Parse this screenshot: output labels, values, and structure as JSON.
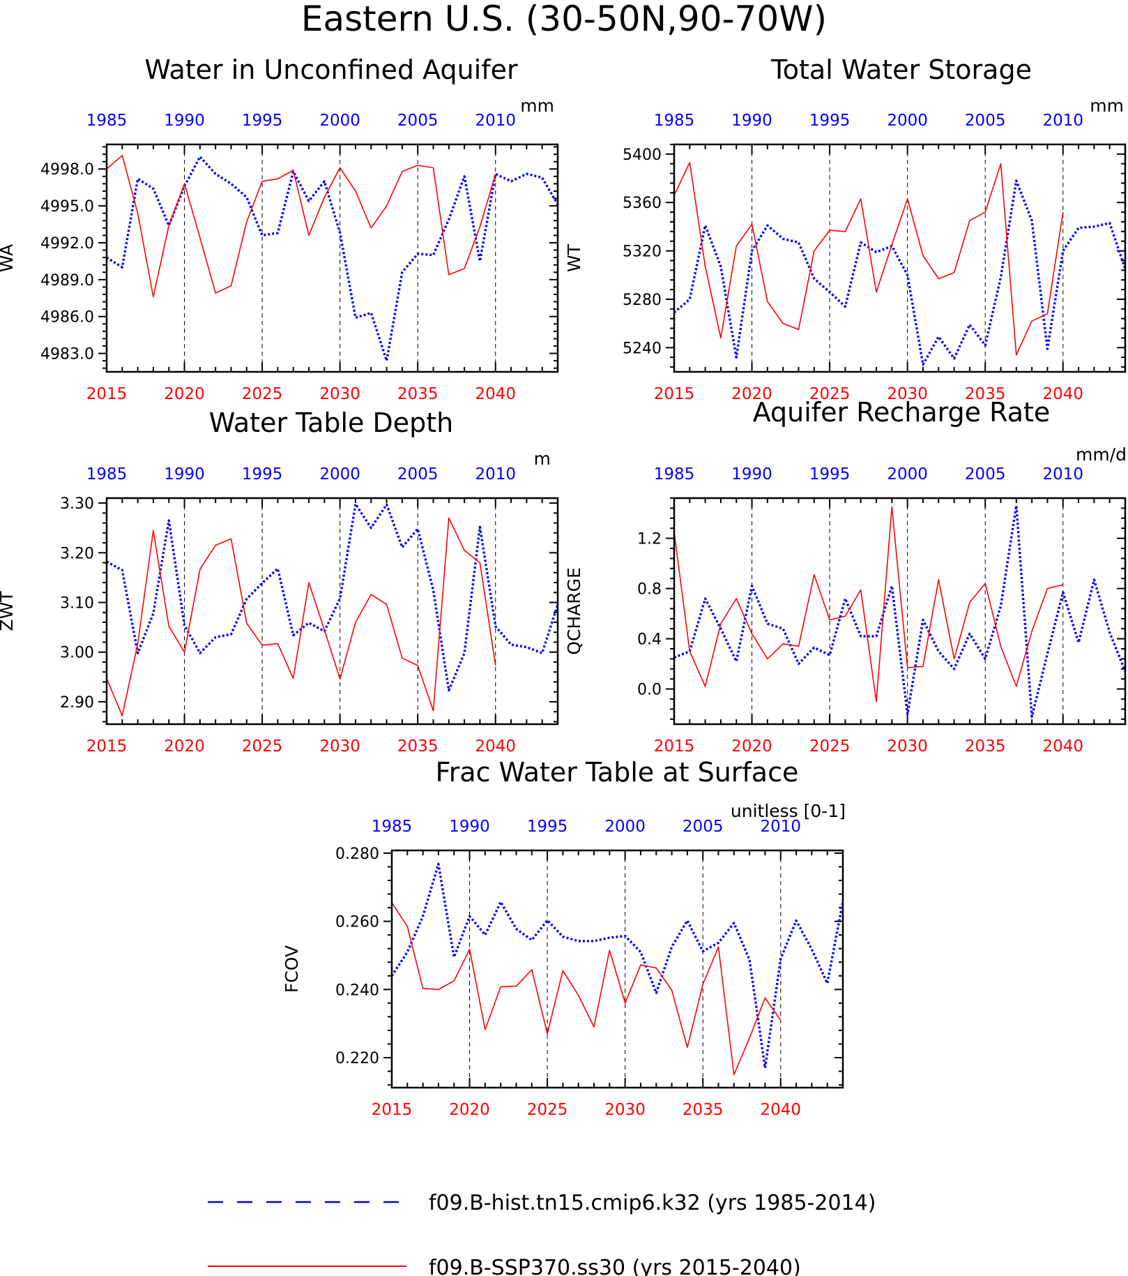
{
  "page_title": "Eastern U.S. (30-50N,90-70W)",
  "colors": {
    "hist": "#0000ff",
    "ssp": "#ff0000",
    "axis": "#000000"
  },
  "legend": {
    "hist_label": "f09.B-hist.tn15.cmip6.k32 (yrs 1985-2014)",
    "ssp_label": "f09.B-SSP370.ss30 (yrs 2015-2040)"
  },
  "chart_data": [
    {
      "type": "line",
      "title": "Water in Unconfined Aquifer",
      "ylabel": "WA",
      "units": "mm",
      "ylim": [
        4981.5,
        5000.0
      ],
      "yticks": [
        4983.0,
        4986.0,
        4989.0,
        4992.0,
        4995.0,
        4998.0
      ],
      "ytick_labels": [
        "4983.0",
        "4986.0",
        "4989.0",
        "4992.0",
        "4995.0",
        "4998.0"
      ],
      "x_bottom_ticks": [
        "2015",
        "2020",
        "2025",
        "2030",
        "2035",
        "2040"
      ],
      "x_top_ticks": [
        "1985",
        "1990",
        "1995",
        "2000",
        "2005",
        "2010"
      ],
      "series": [
        {
          "name": "f09.B-hist.tn15.cmip6.k32 (yrs 1985-2014)",
          "x_start": 1985,
          "values": [
            4990.8,
            4990.0,
            4997.2,
            4996.4,
            4993.4,
            4996.6,
            4999.0,
            4997.6,
            4996.8,
            4995.7,
            4992.6,
            4992.8,
            4997.8,
            4995.4,
            4997.0,
            4992.8,
            4985.9,
            4986.3,
            4982.4,
            4989.6,
            4991.1,
            4991.0,
            4993.9,
            4997.4,
            4990.5,
            4997.6,
            4997.0,
            4997.6,
            4997.3,
            4995.1
          ]
        },
        {
          "name": "f09.B-SSP370.ss30 (yrs 2015-2040)",
          "x_start": 2015,
          "values": [
            4998.0,
            4999.1,
            4994.4,
            4987.6,
            4993.4,
            4996.8,
            4992.4,
            4987.9,
            4988.5,
            4993.7,
            4997.0,
            4997.2,
            4997.9,
            4992.6,
            4995.7,
            4998.1,
            4996.2,
            4993.2,
            4995.0,
            4997.8,
            4998.3,
            4998.1,
            4989.4,
            4989.9,
            4993.3,
            4997.6
          ]
        }
      ]
    },
    {
      "type": "line",
      "title": "Total Water Storage",
      "ylabel": "WT",
      "units": "mm",
      "ylim": [
        5220,
        5408
      ],
      "yticks": [
        5240,
        5280,
        5320,
        5360,
        5400
      ],
      "ytick_labels": [
        "5240",
        "5280",
        "5320",
        "5360",
        "5400"
      ],
      "x_bottom_ticks": [
        "2015",
        "2020",
        "2025",
        "2030",
        "2035",
        "2040"
      ],
      "x_top_ticks": [
        "1985",
        "1990",
        "1995",
        "2000",
        "2005",
        "2010"
      ],
      "series": [
        {
          "name": "f09.B-hist.tn15.cmip6.k32 (yrs 1985-2014)",
          "x_start": 1985,
          "values": [
            5269,
            5280,
            5341,
            5307,
            5232,
            5320,
            5341,
            5330,
            5327,
            5297,
            5286,
            5274,
            5327,
            5319,
            5324,
            5300,
            5226,
            5249,
            5231,
            5259,
            5242,
            5298,
            5378,
            5345,
            5239,
            5320,
            5339,
            5340,
            5343,
            5305
          ]
        },
        {
          "name": "f09.B-SSP370.ss30 (yrs 2015-2040)",
          "x_start": 2015,
          "values": [
            5366,
            5393,
            5307,
            5248,
            5324,
            5342,
            5278,
            5260,
            5255,
            5320,
            5337,
            5336,
            5363,
            5286,
            5325,
            5363,
            5316,
            5297,
            5302,
            5345,
            5352,
            5392,
            5234,
            5262,
            5268,
            5352
          ]
        }
      ]
    },
    {
      "type": "line",
      "title": "Water Table Depth",
      "ylabel": "ZWT",
      "units": "m",
      "ylim": [
        2.855,
        3.31
      ],
      "yticks": [
        2.9,
        3.0,
        3.1,
        3.2,
        3.3
      ],
      "ytick_labels": [
        "2.90",
        "3.00",
        "3.10",
        "3.20",
        "3.30"
      ],
      "x_bottom_ticks": [
        "2015",
        "2020",
        "2025",
        "2030",
        "2035",
        "2040"
      ],
      "x_top_ticks": [
        "1985",
        "1990",
        "1995",
        "2000",
        "2005",
        "2010"
      ],
      "series": [
        {
          "name": "f09.B-hist.tn15.cmip6.k32 (yrs 1985-2014)",
          "x_start": 1985,
          "values": [
            3.182,
            3.165,
            2.998,
            3.078,
            3.265,
            3.054,
            2.998,
            3.03,
            3.036,
            3.107,
            3.139,
            3.168,
            3.034,
            3.059,
            3.042,
            3.108,
            3.298,
            3.25,
            3.297,
            3.211,
            3.248,
            3.125,
            2.923,
            2.998,
            3.252,
            3.052,
            3.015,
            3.01,
            2.998,
            3.096
          ]
        },
        {
          "name": "f09.B-SSP370.ss30 (yrs 2015-2040)",
          "x_start": 2015,
          "values": [
            2.947,
            2.872,
            3.017,
            3.245,
            3.052,
            3.0,
            3.167,
            3.215,
            3.228,
            3.058,
            3.014,
            3.017,
            2.947,
            3.14,
            3.045,
            2.946,
            3.06,
            3.116,
            3.096,
            2.988,
            2.973,
            2.882,
            3.27,
            3.205,
            3.18,
            2.973
          ]
        }
      ]
    },
    {
      "type": "line",
      "title": "Aquifer Recharge Rate",
      "ylabel": "QCHARGE",
      "units": "mm/d",
      "ylim": [
        -0.28,
        1.52
      ],
      "yticks": [
        0.0,
        0.4,
        0.8,
        1.2
      ],
      "ytick_labels": [
        "0.0",
        "0.4",
        "0.8",
        "1.2"
      ],
      "x_bottom_ticks": [
        "2015",
        "2020",
        "2025",
        "2030",
        "2035",
        "2040"
      ],
      "x_top_ticks": [
        "1985",
        "1990",
        "1995",
        "2000",
        "2005",
        "2010"
      ],
      "series": [
        {
          "name": "f09.B-hist.tn15.cmip6.k32 (yrs 1985-2014)",
          "x_start": 1985,
          "values": [
            0.25,
            0.3,
            0.72,
            0.48,
            0.22,
            0.82,
            0.52,
            0.48,
            0.2,
            0.33,
            0.27,
            0.72,
            0.42,
            0.42,
            0.82,
            -0.2,
            0.55,
            0.3,
            0.16,
            0.44,
            0.24,
            0.66,
            1.46,
            -0.22,
            0.28,
            0.77,
            0.37,
            0.87,
            0.45,
            0.14
          ]
        },
        {
          "name": "f09.B-SSP370.ss30 (yrs 2015-2040)",
          "x_start": 2015,
          "values": [
            1.25,
            0.3,
            0.02,
            0.52,
            0.72,
            0.44,
            0.24,
            0.36,
            0.34,
            0.91,
            0.55,
            0.58,
            0.79,
            -0.1,
            1.45,
            0.17,
            0.18,
            0.87,
            0.24,
            0.69,
            0.84,
            0.34,
            0.02,
            0.46,
            0.8,
            0.83
          ]
        }
      ]
    },
    {
      "type": "line",
      "title": "Frac Water Table at Surface",
      "ylabel": "FCOV",
      "units": "unitless [0-1]",
      "ylim": [
        0.2112,
        0.2808
      ],
      "yticks": [
        0.22,
        0.24,
        0.26,
        0.28
      ],
      "ytick_labels": [
        "0.220",
        "0.240",
        "0.260",
        "0.280"
      ],
      "x_bottom_ticks": [
        "2015",
        "2020",
        "2025",
        "2030",
        "2035",
        "2040"
      ],
      "x_top_ticks": [
        "1985",
        "1990",
        "1995",
        "2000",
        "2005",
        "2010"
      ],
      "series": [
        {
          "name": "f09.B-hist.tn15.cmip6.k32 (yrs 1985-2014)",
          "x_start": 1985,
          "values": [
            0.244,
            0.251,
            0.2615,
            0.2768,
            0.2495,
            0.2615,
            0.256,
            0.2657,
            0.2578,
            0.2545,
            0.2603,
            0.2555,
            0.2542,
            0.2542,
            0.2552,
            0.2557,
            0.251,
            0.239,
            0.2525,
            0.2602,
            0.2512,
            0.2537,
            0.2595,
            0.2487,
            0.217,
            0.249,
            0.2602,
            0.2518,
            0.2418,
            0.2658
          ]
        },
        {
          "name": "f09.B-SSP370.ss30 (yrs 2015-2040)",
          "x_start": 2015,
          "values": [
            0.2655,
            0.2585,
            0.2403,
            0.24,
            0.2425,
            0.2518,
            0.2282,
            0.2408,
            0.241,
            0.2458,
            0.227,
            0.2455,
            0.2383,
            0.229,
            0.2515,
            0.236,
            0.2472,
            0.2463,
            0.2398,
            0.223,
            0.2415,
            0.2525,
            0.215,
            0.2258,
            0.2375,
            0.231
          ]
        }
      ]
    }
  ]
}
